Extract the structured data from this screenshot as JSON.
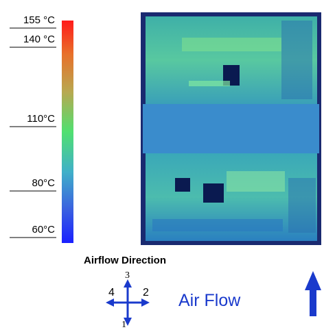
{
  "scale": {
    "labels": [
      "155 °C",
      "140 °C",
      "110°C",
      "80°C",
      "60°C"
    ]
  },
  "legend": {
    "title": "Airflow Direction",
    "directions": [
      "3",
      "4",
      "2",
      "1"
    ]
  },
  "caption": "Air Flow"
}
